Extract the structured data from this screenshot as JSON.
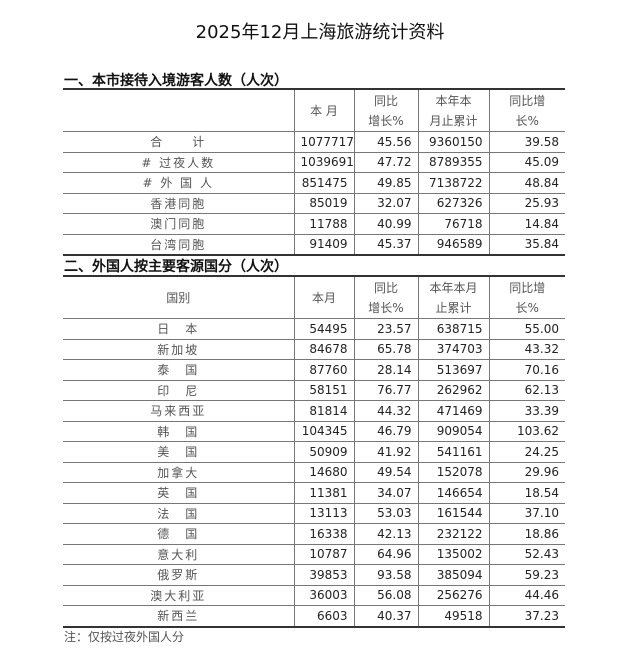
{
  "title": "2025年12月上海旅游统计资料",
  "section1": {
    "heading": "一、本市接待入境游客人数（人次）",
    "headers": [
      "",
      "本 月",
      "同比\n增长%",
      "本年本\n月止累计",
      "同比增\n长%"
    ],
    "rows": [
      [
        "合　　计",
        "1077717",
        "45.56",
        "9360150",
        "39.58"
      ],
      [
        "# 过夜人数",
        "1039691",
        "47.72",
        "8789355",
        "45.09"
      ],
      [
        "#  外  国  人",
        "851475",
        "49.85",
        "7138722",
        "48.84"
      ],
      [
        "香港同胞",
        "85019",
        "32.07",
        "627326",
        "25.93"
      ],
      [
        "澳门同胞",
        "11788",
        "40.99",
        "76718",
        "14.84"
      ],
      [
        "台湾同胞",
        "91409",
        "45.37",
        "946589",
        "35.84"
      ]
    ]
  },
  "section2": {
    "heading": "二、外国人按主要客源国分（人次）",
    "headers": [
      "国别",
      "本月",
      "同比\n增长%",
      "本年本月\n止累计",
      "同比增\n长%"
    ],
    "rows": [
      [
        "日　本",
        "54495",
        "23.57",
        "638715",
        "55.00"
      ],
      [
        "新加坡",
        "84678",
        "65.78",
        "374703",
        "43.32"
      ],
      [
        "泰　国",
        "87760",
        "28.14",
        "513697",
        "70.16"
      ],
      [
        "印　尼",
        "58151",
        "76.77",
        "262962",
        "62.13"
      ],
      [
        "马来西亚",
        "81814",
        "44.32",
        "471469",
        "33.39"
      ],
      [
        "韩　国",
        "104345",
        "46.79",
        "909054",
        "103.62"
      ],
      [
        "美　国",
        "50909",
        "41.92",
        "541161",
        "24.25"
      ],
      [
        "加拿大",
        "14680",
        "49.54",
        "152078",
        "29.96"
      ],
      [
        "英　国",
        "11381",
        "34.07",
        "146654",
        "18.54"
      ],
      [
        "法　国",
        "13113",
        "53.03",
        "161544",
        "37.10"
      ],
      [
        "德　国",
        "16338",
        "42.13",
        "232122",
        "18.86"
      ],
      [
        "意大利",
        "10787",
        "64.96",
        "135002",
        "52.43"
      ],
      [
        "俄罗斯",
        "39853",
        "93.58",
        "385094",
        "59.23"
      ],
      [
        "澳大利亚",
        "36003",
        "56.08",
        "256276",
        "44.46"
      ],
      [
        "新西兰",
        "6603",
        "40.37",
        "49518",
        "37.23"
      ]
    ]
  },
  "note": "注：仅按过夜外国人分"
}
